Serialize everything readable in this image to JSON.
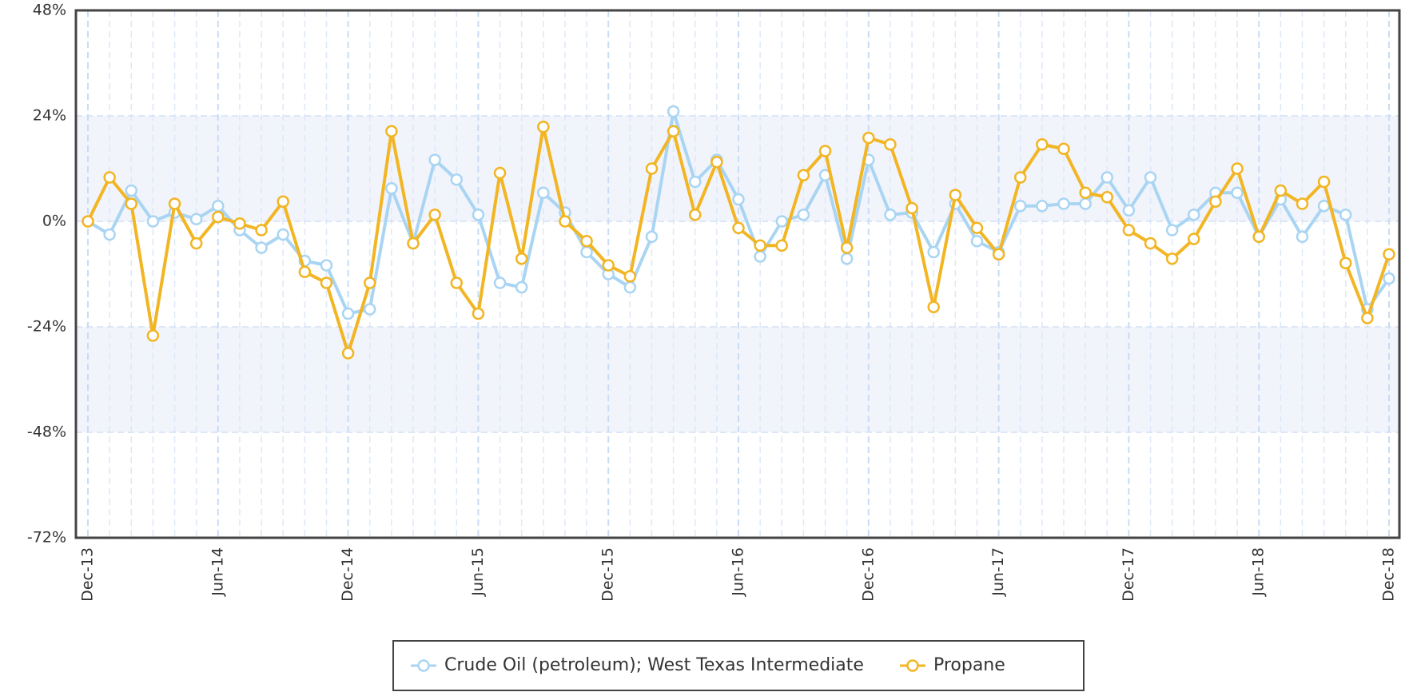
{
  "chart_data": {
    "type": "line",
    "categories": [
      "Dec-13",
      null,
      null,
      null,
      null,
      null,
      "Jun-14",
      null,
      null,
      null,
      null,
      null,
      "Dec-14",
      null,
      null,
      null,
      null,
      null,
      "Jun-15",
      null,
      null,
      null,
      null,
      null,
      "Dec-15",
      null,
      null,
      null,
      null,
      null,
      "Jun-16",
      null,
      null,
      null,
      null,
      null,
      "Dec-16",
      null,
      null,
      null,
      null,
      null,
      "Jun-17",
      null,
      null,
      null,
      null,
      null,
      "Dec-17",
      null,
      null,
      null,
      null,
      null,
      "Jun-18",
      null,
      null,
      null,
      null,
      null,
      "Dec-18"
    ],
    "series": [
      {
        "name": "Crude Oil (petroleum); West Texas Intermediate",
        "color": "#a9d5f3",
        "values": [
          0,
          -3,
          7,
          0,
          2,
          0.5,
          3.5,
          -2,
          -6,
          -3,
          -9,
          -10,
          -21,
          -20,
          7.5,
          -5,
          14,
          9.5,
          1.5,
          -14,
          -15,
          6.5,
          2,
          -7,
          -12,
          -15,
          -3.5,
          25,
          9,
          14,
          5,
          -8,
          0,
          1.5,
          10.5,
          -8.5,
          14,
          1.5,
          2,
          -7,
          4,
          -4.5,
          -7,
          3.5,
          3.5,
          4,
          4,
          10,
          2.5,
          10,
          -2,
          1.5,
          6.5,
          6.5,
          -3.5,
          5,
          -3.5,
          3.5,
          1.5,
          -20,
          -13
        ]
      },
      {
        "name": "Propane",
        "color": "#f2b523",
        "values": [
          0,
          10,
          4,
          -26,
          4,
          -5,
          1,
          -0.5,
          -2,
          4.5,
          -11.5,
          -14,
          -30,
          -14,
          20.5,
          -5,
          1.5,
          -14,
          -21,
          11,
          -8.5,
          21.5,
          0,
          -4.5,
          -10,
          -12.5,
          12,
          20.5,
          1.5,
          13.5,
          -1.5,
          -5.5,
          -5.5,
          10.5,
          16,
          -6,
          19,
          17.5,
          3,
          -19.5,
          6,
          -1.5,
          -7.5,
          10,
          17.5,
          16.5,
          6.5,
          5.5,
          -2,
          -5,
          -8.5,
          -4,
          4.5,
          12,
          -3.5,
          7,
          4,
          9,
          -9.5,
          -22,
          -7.5
        ]
      }
    ],
    "ylim": [
      -72,
      48
    ],
    "yticks": [
      {
        "value": -72,
        "label": "-72%"
      },
      {
        "value": -48,
        "label": "-48%"
      },
      {
        "value": -24,
        "label": "-24%"
      },
      {
        "value": 0,
        "label": "0%"
      },
      {
        "value": 24,
        "label": "24%"
      },
      {
        "value": 48,
        "label": "48%"
      }
    ],
    "grid": true
  }
}
